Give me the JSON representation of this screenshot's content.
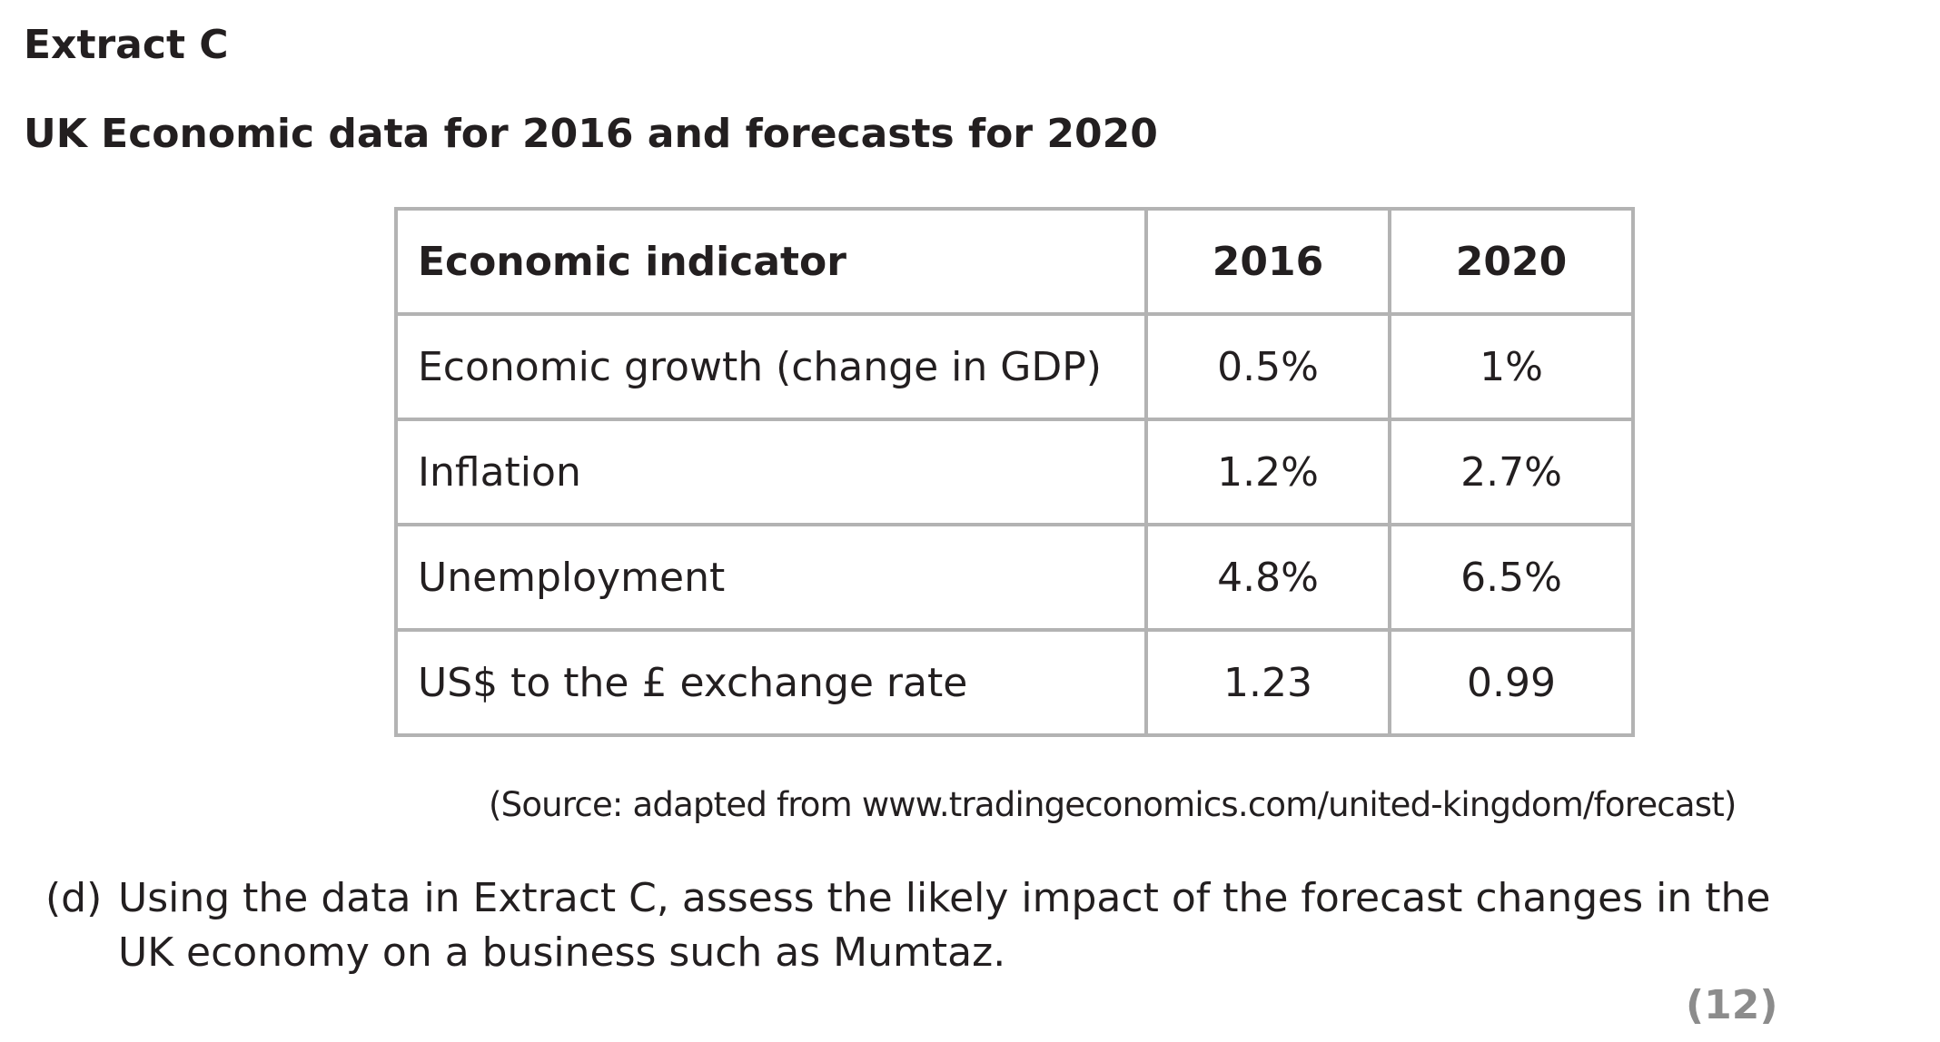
{
  "extract": {
    "title": "Extract C",
    "subtitle": "UK Economic data for 2016 and forecasts for 2020"
  },
  "table": {
    "headers": [
      "Economic indicator",
      "2016",
      "2020"
    ],
    "rows": [
      [
        "Economic growth (change in GDP)",
        "0.5%",
        "1%"
      ],
      [
        "Inflation",
        "1.2%",
        "2.7%"
      ],
      [
        "Unemployment",
        "4.8%",
        "6.5%"
      ],
      [
        "US$ to the £ exchange rate",
        "1.23",
        "0.99"
      ]
    ]
  },
  "source": "(Source: adapted from www.tradingeconomics.com/united-kingdom/forecast)",
  "question": {
    "label": "(d)",
    "line1": "Using the data in Extract C, assess the likely impact of the forecast changes in the",
    "line2": "UK economy on a business such as Mumtaz."
  },
  "marks": "(12)"
}
